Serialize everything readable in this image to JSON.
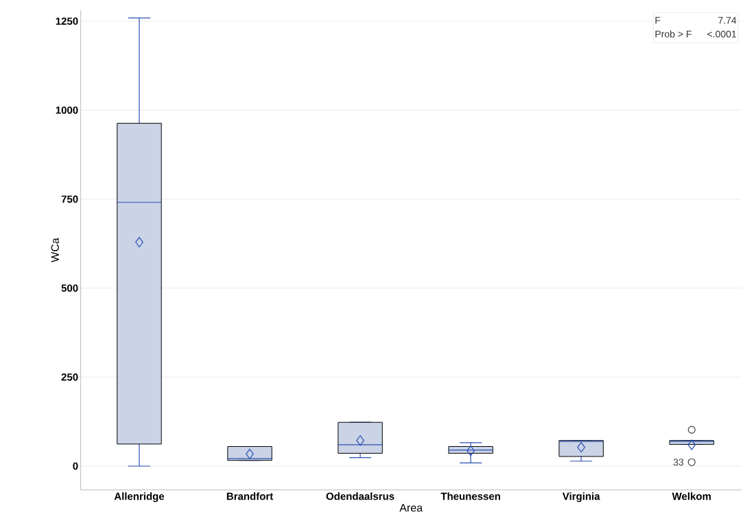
{
  "chart_data": {
    "type": "box",
    "xlabel": "Area",
    "ylabel": "WCa",
    "categories": [
      "Allenridge",
      "Brandfort",
      "Odendaalsrus",
      "Theunessen",
      "Virginia",
      "Welkom"
    ],
    "color": "#cad4e6",
    "boxes": [
      {
        "low": 0,
        "q1": 62,
        "median": 741,
        "q3": 963,
        "high": 1259,
        "mean": 629
      },
      {
        "low": 16,
        "q1": 16,
        "median": 21,
        "q3": 55,
        "high": 55,
        "mean": 34
      },
      {
        "low": 24,
        "q1": 36,
        "median": 60,
        "q3": 123,
        "high": 123,
        "mean": 72
      },
      {
        "low": 9,
        "q1": 36,
        "median": 45,
        "q3": 55,
        "high": 66,
        "mean": 43
      },
      {
        "low": 14,
        "q1": 27,
        "median": 69,
        "q3": 72,
        "high": 72,
        "mean": 53
      },
      {
        "low": 61,
        "q1": 61,
        "median": 69,
        "q3": 72,
        "high": 72,
        "mean": 60,
        "outliers": [
          102,
          11
        ]
      }
    ],
    "ylim": [
      -67,
      1281
    ],
    "yticks": [
      0,
      250,
      500,
      750,
      1000,
      1250
    ],
    "grid": "y",
    "annotations": [
      "F",
      "7.74",
      "Prob > F",
      "<.0001",
      "33"
    ]
  }
}
